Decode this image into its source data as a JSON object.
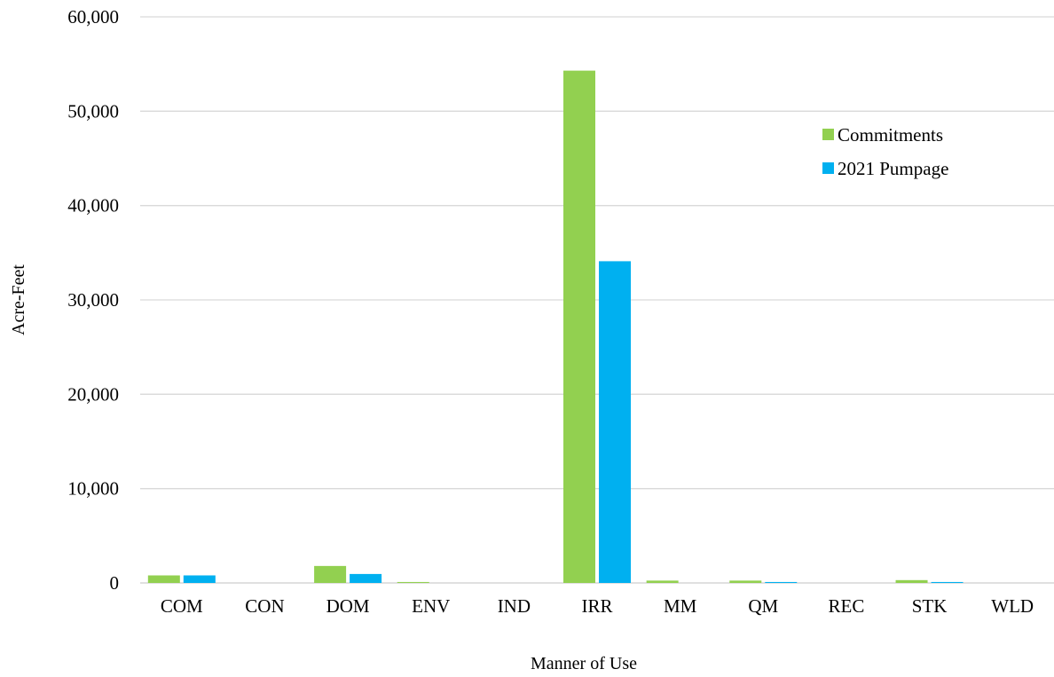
{
  "chart_data": {
    "type": "bar",
    "title": "",
    "xlabel": "Manner of Use",
    "ylabel": "Acre-Feet",
    "categories": [
      "COM",
      "CON",
      "DOM",
      "ENV",
      "IND",
      "IRR",
      "MM",
      "QM",
      "REC",
      "STK",
      "WLD"
    ],
    "series": [
      {
        "name": "Commitments",
        "color": "#92d050",
        "values": [
          800,
          0,
          1800,
          100,
          0,
          54300,
          250,
          250,
          0,
          300,
          0
        ]
      },
      {
        "name": "2021 Pumpage",
        "color": "#00b0f0",
        "values": [
          800,
          0,
          950,
          0,
          0,
          34100,
          0,
          100,
          0,
          100,
          0
        ]
      }
    ],
    "ylim": [
      0,
      60000
    ],
    "yticks": [
      "0",
      "10,000",
      "20,000",
      "30,000",
      "40,000",
      "50,000",
      "60,000"
    ],
    "grid": true,
    "legend_position": "top-right"
  }
}
